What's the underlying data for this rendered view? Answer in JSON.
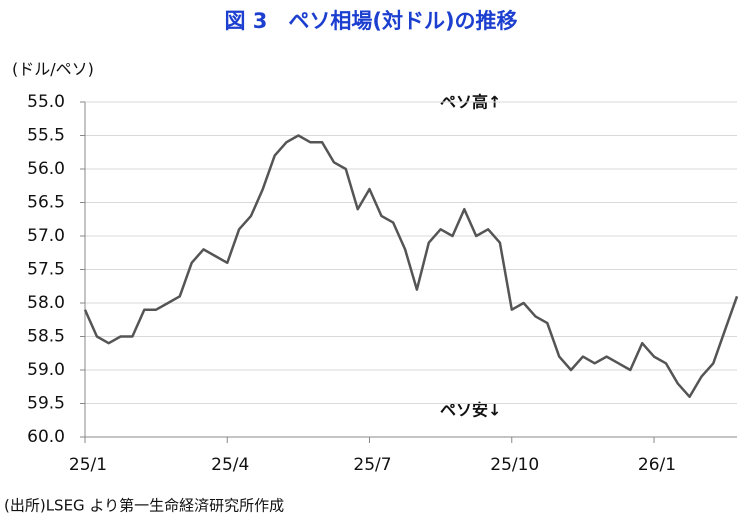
{
  "chart_data": {
    "type": "line",
    "title": "図 3　ペソ相場(対ドル)の推移",
    "y_axis_label": "(ドル/ペソ)",
    "annotations": [
      "ペソ高↑",
      "ペソ安↓"
    ],
    "source": "(出所)LSEG より第一生命経済研究所作成",
    "categories": [
      "25/1",
      null,
      null,
      null,
      null,
      null,
      null,
      null,
      null,
      null,
      null,
      null,
      "25/4",
      null,
      null,
      null,
      null,
      null,
      null,
      null,
      null,
      null,
      null,
      null,
      "25/7",
      null,
      null,
      null,
      null,
      null,
      null,
      null,
      null,
      null,
      null,
      null,
      "25/10",
      null,
      null,
      null,
      null,
      null,
      null,
      null,
      null,
      null,
      null,
      null,
      "26/1",
      null,
      null,
      null,
      null,
      null,
      null,
      null
    ],
    "series": [
      {
        "name": "ペソ相場",
        "color": "#555555",
        "values": [
          58.1,
          58.5,
          58.6,
          58.5,
          58.5,
          58.1,
          58.1,
          58.0,
          57.9,
          57.4,
          57.2,
          57.3,
          57.4,
          56.9,
          56.7,
          56.3,
          55.8,
          55.6,
          55.5,
          55.6,
          55.6,
          55.9,
          56.0,
          56.6,
          56.3,
          56.7,
          56.8,
          57.2,
          57.8,
          57.1,
          56.9,
          57.0,
          56.6,
          57.0,
          56.9,
          57.1,
          58.1,
          58.0,
          58.2,
          58.3,
          58.8,
          59.0,
          58.8,
          58.9,
          58.8,
          58.9,
          59.0,
          58.6,
          58.8,
          58.9,
          59.2,
          59.4,
          59.1,
          58.9,
          58.4,
          57.9
        ]
      }
    ],
    "ylim": [
      55,
      60
    ],
    "y_inverted": true,
    "yticks": [
      {
        "value": 55,
        "label": "55.0"
      },
      {
        "value": 55.5,
        "label": "55.5"
      },
      {
        "value": 56,
        "label": "56.0"
      },
      {
        "value": 56.5,
        "label": "56.5"
      },
      {
        "value": 57,
        "label": "57.0"
      },
      {
        "value": 57.5,
        "label": "57.5"
      },
      {
        "value": 58,
        "label": "58.0"
      },
      {
        "value": 58.5,
        "label": "58.5"
      },
      {
        "value": 59,
        "label": "59.0"
      },
      {
        "value": 59.5,
        "label": "59.5"
      },
      {
        "value": 60,
        "label": "60.0"
      }
    ],
    "grid": true
  }
}
